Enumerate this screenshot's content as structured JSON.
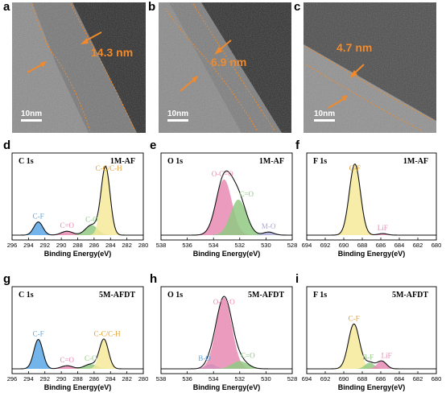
{
  "tem_panels": [
    {
      "letter": "a",
      "thickness": "14.3 nm",
      "scale": "10nm"
    },
    {
      "letter": "b",
      "thickness": "6.9 nm",
      "scale": "10nm"
    },
    {
      "letter": "c",
      "thickness": "4.7 nm",
      "scale": "10nm"
    }
  ],
  "colors": {
    "orange": "#f08a2c",
    "blue": "#5aa7e6",
    "pink": "#e88bb3",
    "green": "#90c982",
    "yellow": "#f6ea9a",
    "lavender": "#a8a8d8",
    "grey": "#d8d8d8"
  },
  "chart_data": [
    {
      "letter": "d",
      "type": "area",
      "element": "C 1s",
      "sample": "1M-AF",
      "xlabel": "Binding Energy(eV)",
      "xlim": [
        296,
        280
      ],
      "ticks": [
        296,
        294,
        292,
        290,
        288,
        286,
        284,
        282,
        280
      ],
      "components": [
        {
          "label": "C-F",
          "center": 292.8,
          "height": 0.17,
          "width": 0.55,
          "color": "#5aa7e6"
        },
        {
          "label": "C=O",
          "center": 289.3,
          "height": 0.05,
          "width": 0.7,
          "color": "#e88bb3"
        },
        {
          "label": "C-O",
          "center": 286.3,
          "height": 0.13,
          "width": 0.75,
          "color": "#90c982"
        },
        {
          "label": "C-C/C-H",
          "center": 284.6,
          "height": 0.88,
          "width": 0.55,
          "color": "#f6ea9a"
        }
      ]
    },
    {
      "letter": "e",
      "type": "area",
      "element": "O 1s",
      "sample": "1M-AF",
      "xlabel": "Binding Energy(eV)",
      "xlim": [
        538,
        528
      ],
      "ticks": [
        538,
        536,
        534,
        532,
        530,
        528
      ],
      "components": [
        {
          "label": "O-C=O",
          "center": 533.2,
          "height": 0.72,
          "width": 0.6,
          "color": "#e88bb3"
        },
        {
          "label": "C=O",
          "center": 532.1,
          "height": 0.46,
          "width": 0.6,
          "color": "#90c982"
        },
        {
          "label": "M-O",
          "center": 529.8,
          "height": 0.04,
          "width": 0.4,
          "color": "#a8a8d8"
        }
      ]
    },
    {
      "letter": "f",
      "type": "area",
      "element": "F 1s",
      "sample": "1M-AF",
      "xlabel": "Binding Energy(eV)",
      "xlim": [
        694,
        680
      ],
      "ticks": [
        694,
        692,
        690,
        688,
        686,
        684,
        682,
        680
      ],
      "components": [
        {
          "label": "C-F",
          "center": 688.8,
          "height": 0.92,
          "width": 0.6,
          "color": "#f6ea9a"
        },
        {
          "label": "LiF",
          "center": 685.8,
          "height": 0.02,
          "width": 0.5,
          "color": "#e88bb3"
        }
      ]
    },
    {
      "letter": "g",
      "type": "area",
      "element": "C 1s",
      "sample": "5M-AFDT",
      "xlabel": "Binding Energy(eV)",
      "xlim": [
        296,
        280
      ],
      "ticks": [
        296,
        294,
        292,
        290,
        288,
        286,
        284,
        282,
        280
      ],
      "components": [
        {
          "label": "C-F",
          "center": 292.8,
          "height": 0.38,
          "width": 0.55,
          "color": "#5aa7e6"
        },
        {
          "label": "C=O",
          "center": 289.3,
          "height": 0.04,
          "width": 0.7,
          "color": "#e88bb3"
        },
        {
          "label": "C-O",
          "center": 286.4,
          "height": 0.06,
          "width": 0.75,
          "color": "#90c982"
        },
        {
          "label": "C-C/C-H",
          "center": 284.8,
          "height": 0.38,
          "width": 0.55,
          "color": "#f6ea9a"
        }
      ]
    },
    {
      "letter": "h",
      "type": "area",
      "element": "O 1s",
      "sample": "5M-AFDT",
      "xlabel": "Binding Energy(eV)",
      "xlim": [
        538,
        528
      ],
      "ticks": [
        538,
        536,
        534,
        532,
        530,
        528
      ],
      "components": [
        {
          "label": "B-O",
          "center": 534.2,
          "height": 0.06,
          "width": 0.4,
          "color": "#5aa7e6"
        },
        {
          "label": "O-C=O",
          "center": 533.2,
          "height": 0.92,
          "width": 0.6,
          "color": "#e88bb3"
        },
        {
          "label": "C=O",
          "center": 532.0,
          "height": 0.1,
          "width": 0.6,
          "color": "#90c982"
        }
      ]
    },
    {
      "letter": "i",
      "type": "area",
      "element": "F 1s",
      "sample": "5M-AFDT",
      "xlabel": "Binding Energy(eV)",
      "xlim": [
        694,
        680
      ],
      "ticks": [
        694,
        692,
        690,
        688,
        686,
        684,
        682,
        680
      ],
      "components": [
        {
          "label": "C-F",
          "center": 688.9,
          "height": 0.58,
          "width": 0.6,
          "color": "#f6ea9a"
        },
        {
          "label": "B-F",
          "center": 687.2,
          "height": 0.08,
          "width": 0.5,
          "color": "#90c982"
        },
        {
          "label": "LiF",
          "center": 685.9,
          "height": 0.1,
          "width": 0.5,
          "color": "#e88bb3"
        }
      ]
    }
  ]
}
